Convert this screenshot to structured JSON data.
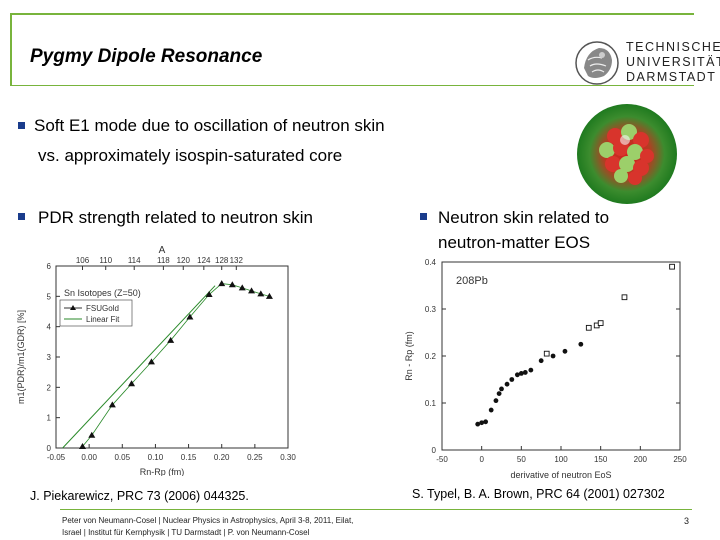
{
  "slide": {
    "title": "Pygmy Dipole Resonance",
    "university": {
      "line1": "TECHNISCHE",
      "line2": "UNIVERSITÄT",
      "line3": "DARMSTADT"
    },
    "bullets": [
      {
        "line1": "Soft E1 mode due to oscillation of neutron skin",
        "line2": "vs. approximately isospin-saturated core"
      },
      {
        "line1": "PDR strength related to neutron skin"
      },
      {
        "line1": "Neutron skin related to",
        "line2": "neutron-matter EOS"
      }
    ],
    "captions": {
      "left": "J. Piekarewicz, PRC 73 (2006) 044325.",
      "right": "S. Typel, B. A. Brown, PRC 64 (2001) 027302"
    },
    "footer": {
      "line1": "Peter von Neumann-Cosel | Nuclear Physics in Astrophysics, April 3-8, 2011, Eilat,",
      "line2": "Israel | Institut für Kernphysik | TU Darmstadt | P. von Neumann-Cosel",
      "page": "3"
    },
    "colors": {
      "accent": "#78b43c",
      "bullet": "#1a3c8c"
    }
  },
  "chart_data": [
    {
      "type": "line",
      "title": "Sn Isotopes (Z=50)",
      "xlabel": "Rn-Rp (fm)",
      "ylabel": "m1(PDR)/m1(GDR) [%]",
      "top_label": "A",
      "xlim": [
        -0.05,
        0.3
      ],
      "ylim": [
        0,
        6
      ],
      "x_ticks": [
        "-0.05",
        "0.00",
        "0.05",
        "0.10",
        "0.15",
        "0.20",
        "0.25",
        "0.30"
      ],
      "y_ticks": [
        "0",
        "1",
        "2",
        "3",
        "4",
        "5",
        "6"
      ],
      "top_ticks": [
        "106",
        "110",
        "114",
        "118",
        "120",
        "124",
        "128",
        "132"
      ],
      "legend": [
        "FSUGold",
        "Linear Fit"
      ],
      "series": [
        {
          "name": "FSUGold",
          "x": [
            -0.01,
            0.004,
            0.035,
            0.064,
            0.094,
            0.123,
            0.152,
            0.181,
            0.2,
            0.216,
            0.231,
            0.245,
            0.259,
            0.272
          ],
          "y": [
            0.05,
            0.42,
            1.42,
            2.12,
            2.84,
            3.55,
            4.32,
            5.06,
            5.42,
            5.38,
            5.28,
            5.18,
            5.08,
            5.0
          ]
        },
        {
          "name": "Linear Fit",
          "x": [
            -0.04,
            0.19
          ],
          "y": [
            0.0,
            5.35
          ]
        }
      ]
    },
    {
      "type": "scatter",
      "title": "208Pb",
      "xlabel": "derivative of neutron EoS",
      "ylabel": "Rn - Rp (fm)",
      "xlim": [
        -50,
        250
      ],
      "ylim": [
        0,
        0.4
      ],
      "x_ticks": [
        "-50",
        "0",
        "50",
        "100",
        "150",
        "200",
        "250"
      ],
      "y_ticks": [
        "0",
        "0.1",
        "0.2",
        "0.3",
        "0.4"
      ],
      "series": [
        {
          "name": "filled",
          "x": [
            -5,
            0,
            5,
            12,
            18,
            22,
            25,
            32,
            38,
            45,
            50,
            55,
            62,
            75,
            90,
            105,
            125
          ],
          "y": [
            0.055,
            0.058,
            0.06,
            0.085,
            0.105,
            0.12,
            0.13,
            0.14,
            0.15,
            0.16,
            0.163,
            0.165,
            0.17,
            0.19,
            0.2,
            0.21,
            0.225
          ]
        },
        {
          "name": "open",
          "x": [
            82,
            135,
            145,
            150,
            180,
            240
          ],
          "y": [
            0.205,
            0.26,
            0.265,
            0.27,
            0.325,
            0.39
          ]
        }
      ]
    }
  ]
}
